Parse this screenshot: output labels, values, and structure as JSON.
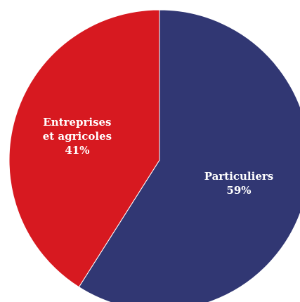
{
  "chart_data": {
    "type": "pie",
    "start_position": "top",
    "direction": "clockwise",
    "slices": [
      {
        "name": "Particuliers",
        "value": 59,
        "label_lines": [
          "Particuliers",
          "59%"
        ],
        "color": "#313773"
      },
      {
        "name": "Entreprises et agricoles",
        "value": 41,
        "label_lines": [
          "Entreprises",
          "et agricoles",
          "41%"
        ],
        "color": "#d71920"
      }
    ]
  }
}
